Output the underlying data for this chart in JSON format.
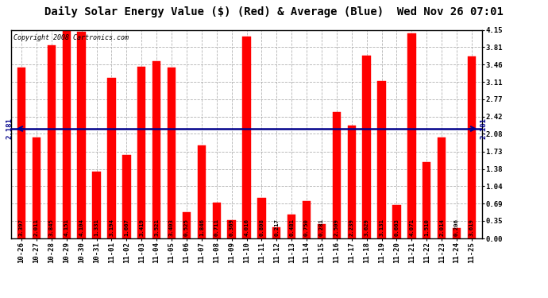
{
  "title": "Daily Solar Energy Value ($) (Red) & Average (Blue)  Wed Nov 26 07:01",
  "copyright": "Copyright 2008 Cartronics.com",
  "average_value": 2.181,
  "bar_color": "#FF0000",
  "avg_line_color": "#00008B",
  "background_color": "#FFFFFF",
  "plot_bg_color": "#FFFFFF",
  "grid_color": "#AAAAAA",
  "categories": [
    "10-26",
    "10-27",
    "10-28",
    "10-29",
    "10-30",
    "10-31",
    "11-01",
    "11-02",
    "11-03",
    "11-04",
    "11-05",
    "11-06",
    "11-07",
    "11-08",
    "11-09",
    "11-10",
    "11-11",
    "11-12",
    "11-13",
    "11-14",
    "11-15",
    "11-16",
    "11-17",
    "11-18",
    "11-19",
    "11-20",
    "11-21",
    "11-22",
    "11-23",
    "11-24",
    "11-25"
  ],
  "values": [
    3.397,
    2.011,
    3.845,
    4.151,
    4.104,
    1.331,
    3.194,
    1.667,
    3.419,
    3.521,
    3.403,
    0.525,
    1.846,
    0.711,
    0.369,
    4.016,
    0.808,
    0.217,
    0.481,
    0.75,
    0.281,
    2.509,
    2.239,
    3.629,
    3.131,
    0.663,
    4.071,
    1.51,
    2.014,
    0.206,
    3.619
  ],
  "ylim": [
    0.0,
    4.15
  ],
  "yticks": [
    0.0,
    0.35,
    0.69,
    1.04,
    1.38,
    1.73,
    2.08,
    2.42,
    2.77,
    3.11,
    3.46,
    3.81,
    4.15
  ],
  "title_fontsize": 10,
  "bar_label_fontsize": 5.2,
  "axis_label_fontsize": 6.5,
  "copyright_fontsize": 6.0,
  "avg_label_fontsize": 6.5
}
